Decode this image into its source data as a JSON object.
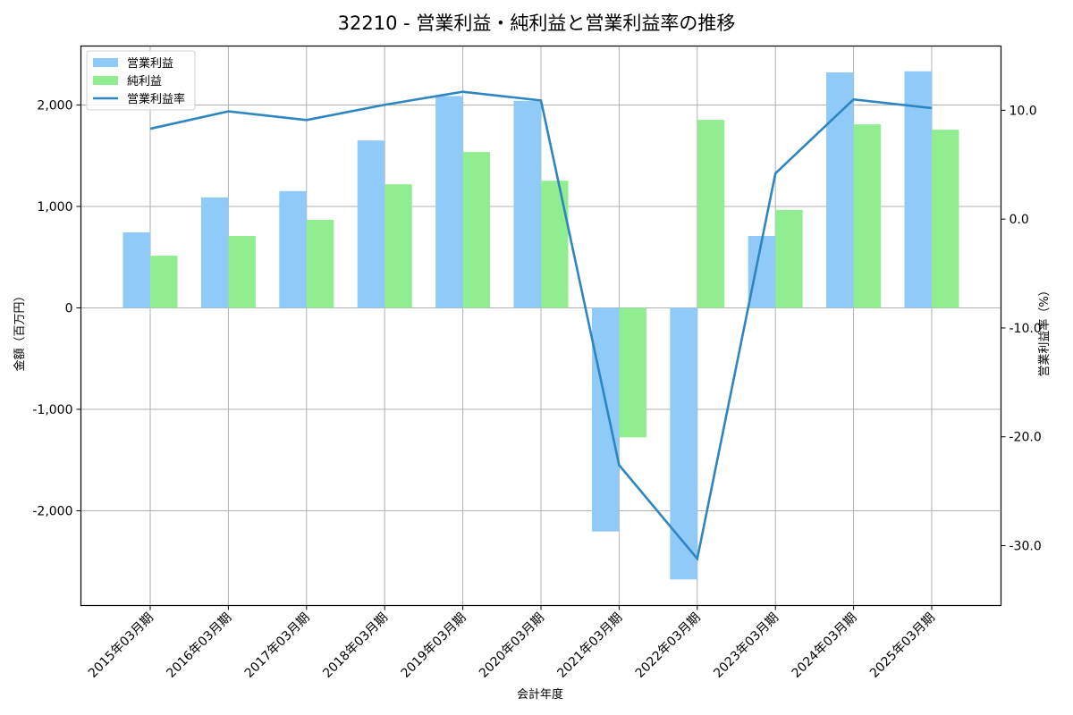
{
  "chart_data": {
    "type": "bar",
    "title": "32210 - 営業利益・純利益と営業利益率の推移",
    "xlabel": "会計年度",
    "ylabel": "金額（百万円）",
    "ylabel_right": "営業利益率（%）",
    "categories": [
      "2015年03月期",
      "2016年03月期",
      "2017年03月期",
      "2018年03月期",
      "2019年03月期",
      "2020年03月期",
      "2021年03月期",
      "2022年03月期",
      "2023年03月期",
      "2024年03月期",
      "2025年03月期"
    ],
    "series": [
      {
        "name": "営業利益",
        "type": "bar",
        "axis": "left",
        "color": "#90CAF9",
        "values": [
          744,
          1089,
          1151,
          1650,
          2088,
          2041,
          -2204,
          -2677,
          709,
          2321,
          2332
        ]
      },
      {
        "name": "純利益",
        "type": "bar",
        "axis": "left",
        "color": "#90EE90",
        "values": [
          514,
          709,
          868,
          1218,
          1536,
          1253,
          -1276,
          1853,
          965,
          1809,
          1756
        ]
      },
      {
        "name": "営業利益率",
        "type": "line",
        "axis": "right",
        "color": "#2E86C1",
        "values": [
          8.3,
          9.9,
          9.1,
          10.5,
          11.7,
          10.9,
          -22.6,
          -31.2,
          4.2,
          11.0,
          10.2
        ]
      }
    ],
    "ylim": [
      -2934,
      2581
    ],
    "ylim_right": [
      -35.5,
      15.9
    ],
    "yticks": [
      2000,
      1000,
      0,
      -1000,
      -2000
    ],
    "ytick_labels": [
      "2,000",
      "1,000",
      "0",
      "-1,000",
      "-2,000"
    ],
    "yticks_right": [
      10,
      0,
      -10,
      -20,
      -30
    ],
    "ytick_labels_right": [
      "10.0",
      "0.0",
      "-10.0",
      "-20.0",
      "-30.0"
    ],
    "grid": true,
    "legend_position": "upper left"
  },
  "legend": {
    "items": [
      {
        "label": "営業利益",
        "kind": "patch",
        "color": "#90CAF9"
      },
      {
        "label": "純利益",
        "kind": "patch",
        "color": "#90EE90"
      },
      {
        "label": "営業利益率",
        "kind": "line",
        "color": "#2E86C1"
      }
    ]
  }
}
